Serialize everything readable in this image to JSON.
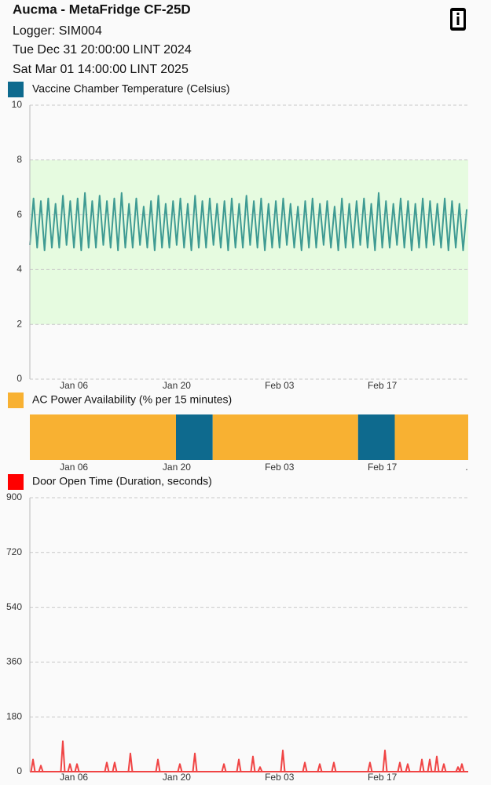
{
  "header": {
    "title": "Aucma - MetaFridge CF-25D",
    "logger": "Logger: SIM004",
    "start": "Tue Dec 31 20:00:00 LINT 2024",
    "end": "Sat Mar 01 14:00:00 LINT 2025"
  },
  "chart_data": [
    {
      "type": "line",
      "line_color": "#3f9b93",
      "band": [
        2,
        8
      ],
      "band_color": "#e6fbe0",
      "xlim": [
        0,
        59.7
      ],
      "ylim": [
        0,
        10
      ],
      "yticks": [
        0,
        2,
        4,
        6,
        8,
        10
      ],
      "grid": true,
      "xticks": [
        {
          "value": 6,
          "label": "Jan 06"
        },
        {
          "value": 20,
          "label": "Jan 20"
        },
        {
          "value": 34,
          "label": "Feb 03"
        },
        {
          "value": 48,
          "label": "Feb 17"
        }
      ],
      "series": [
        {
          "name": "Vaccine Chamber Temperature (Celsius)",
          "color": "#0e6a8e",
          "x": [
            0,
            0.5,
            1,
            1.5,
            2,
            2.5,
            3,
            3.5,
            4,
            4.5,
            5,
            5.5,
            6,
            6.5,
            7,
            7.5,
            8,
            8.5,
            9,
            9.5,
            10,
            10.5,
            11,
            11.5,
            12,
            12.5,
            13,
            13.5,
            14,
            14.5,
            15,
            15.5,
            16,
            16.5,
            17,
            17.5,
            18,
            18.5,
            19,
            19.5,
            20,
            20.5,
            21,
            21.5,
            22,
            22.5,
            23,
            23.5,
            24,
            24.5,
            25,
            25.5,
            26,
            26.5,
            27,
            27.5,
            28,
            28.5,
            29,
            29.5,
            30,
            30.5,
            31,
            31.5,
            32,
            32.5,
            33,
            33.5,
            34,
            34.5,
            35,
            35.5,
            36,
            36.5,
            37,
            37.5,
            38,
            38.5,
            39,
            39.5,
            40,
            40.5,
            41,
            41.5,
            42,
            42.5,
            43,
            43.5,
            44,
            44.5,
            45,
            45.5,
            46,
            46.5,
            47,
            47.5,
            48,
            48.5,
            49,
            49.5,
            50,
            50.5,
            51,
            51.5,
            52,
            52.5,
            53,
            53.5,
            54,
            54.5,
            55,
            55.5,
            56,
            56.5,
            57,
            57.5,
            58,
            58.5,
            59,
            59.5
          ],
          "values": [
            4.9,
            6.6,
            4.8,
            6.5,
            4.7,
            6.6,
            4.8,
            6.4,
            4.8,
            6.7,
            4.9,
            6.5,
            4.8,
            6.6,
            4.7,
            6.8,
            4.8,
            6.5,
            4.8,
            6.7,
            4.9,
            6.5,
            4.8,
            6.6,
            4.7,
            6.8,
            4.8,
            6.4,
            4.8,
            6.6,
            4.9,
            6.3,
            4.8,
            6.5,
            4.7,
            6.7,
            4.8,
            6.4,
            4.8,
            6.5,
            4.9,
            6.6,
            4.8,
            6.4,
            4.7,
            6.7,
            4.8,
            6.5,
            4.8,
            6.6,
            4.9,
            6.4,
            4.8,
            6.5,
            4.7,
            6.6,
            4.8,
            6.4,
            4.8,
            6.7,
            4.9,
            6.5,
            4.8,
            6.6,
            4.7,
            6.4,
            4.8,
            6.5,
            4.8,
            6.6,
            4.9,
            6.4,
            4.8,
            6.3,
            4.7,
            6.5,
            4.8,
            6.6,
            4.8,
            6.4,
            4.9,
            6.5,
            4.8,
            6.3,
            4.7,
            6.6,
            4.8,
            6.4,
            4.8,
            6.5,
            4.9,
            6.6,
            4.8,
            6.4,
            4.7,
            6.8,
            4.8,
            6.5,
            4.8,
            6.4,
            4.9,
            6.6,
            4.8,
            6.5,
            4.7,
            6.4,
            4.8,
            6.6,
            4.8,
            6.5,
            4.9,
            6.4,
            4.8,
            6.6,
            4.7,
            6.5,
            4.8,
            6.4,
            4.7,
            6.2
          ]
        }
      ]
    },
    {
      "type": "strip",
      "low_color": "#0e6a8e",
      "xlim": [
        0,
        59.7
      ],
      "xticks": [
        {
          "value": 6,
          "label": "Jan 06"
        },
        {
          "value": 20,
          "label": "Jan 20"
        },
        {
          "value": 34,
          "label": "Feb 03"
        },
        {
          "value": 48,
          "label": "Feb 17"
        },
        {
          "value": 59.7,
          "label": "."
        }
      ],
      "series": [
        {
          "name": "AC Power Availability (% per 15 minutes)",
          "color": "#f8b132",
          "bins": [
            0,
            19.9,
            24.9,
            44.7,
            49.7,
            59.7
          ],
          "values": [
            100,
            0,
            100,
            0,
            100
          ]
        }
      ]
    },
    {
      "type": "spike",
      "line_color": "#f04444",
      "xlim": [
        0,
        59.7
      ],
      "ylim": [
        0,
        900
      ],
      "yticks": [
        0,
        180,
        360,
        540,
        720,
        900
      ],
      "grid": true,
      "xticks": [
        {
          "value": 6,
          "label": "Jan 06"
        },
        {
          "value": 20,
          "label": "Jan 20"
        },
        {
          "value": 34,
          "label": "Feb 03"
        },
        {
          "value": 48,
          "label": "Feb 17"
        }
      ],
      "series": [
        {
          "name": "Door Open Time (Duration, seconds)",
          "color": "#ff0000",
          "x": [
            0.43,
            1.5,
            4.49,
            5.46,
            6.42,
            10.48,
            11.55,
            13.69,
            17.44,
            20.43,
            22.47,
            26.43,
            28.46,
            30.38,
            31.35,
            34.45,
            37.45,
            39.48,
            41.4,
            46.32,
            48.36,
            50.39,
            51.46,
            53.39,
            54.46,
            55.42,
            56.38,
            58.31,
            58.84
          ],
          "values": [
            40,
            20,
            100,
            25,
            25,
            30,
            30,
            60,
            40,
            25,
            60,
            25,
            40,
            50,
            15,
            70,
            30,
            25,
            30,
            30,
            70,
            30,
            25,
            40,
            40,
            50,
            25,
            15,
            25
          ]
        }
      ]
    }
  ]
}
